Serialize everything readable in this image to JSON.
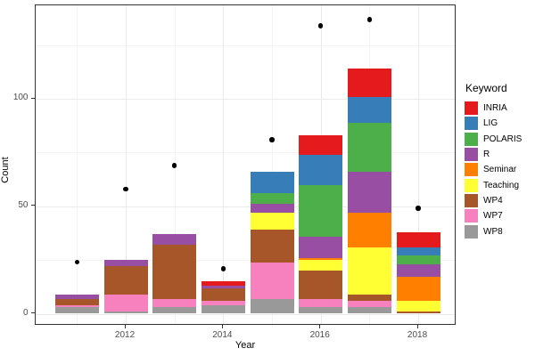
{
  "chart_data": {
    "type": "bar",
    "variant": "stacked-bars-with-points",
    "title": "",
    "xlabel": "Year",
    "ylabel": "Count",
    "legend_title": "Keyword",
    "legend_position": "right",
    "grid": "on",
    "categories": [
      2011,
      2012,
      2013,
      2014,
      2015,
      2016,
      2017,
      2018
    ],
    "x_tick_labels": [
      "2012",
      "2014",
      "2016",
      "2018"
    ],
    "y_tick_labels": [
      "0",
      "50",
      "100"
    ],
    "ylim": [
      0,
      143
    ],
    "series": [
      {
        "name": "INRIA",
        "color": "#E41A1C",
        "values": [
          0,
          0,
          0,
          2,
          0,
          9,
          13,
          7
        ]
      },
      {
        "name": "LIG",
        "color": "#377EB8",
        "values": [
          0,
          0,
          0,
          0,
          10,
          14,
          12,
          4
        ]
      },
      {
        "name": "POLARIS",
        "color": "#4DAF4A",
        "values": [
          0,
          0,
          0,
          0,
          5,
          24,
          23,
          4
        ]
      },
      {
        "name": "R",
        "color": "#984EA3",
        "values": [
          2,
          3,
          5,
          1,
          4,
          10,
          19,
          6
        ]
      },
      {
        "name": "Seminar",
        "color": "#FF7F00",
        "values": [
          0,
          0,
          0,
          0,
          0,
          1,
          16,
          11
        ]
      },
      {
        "name": "Teaching",
        "color": "#FFFF33",
        "values": [
          0,
          0,
          0,
          0,
          8,
          5,
          22,
          5
        ]
      },
      {
        "name": "WP4",
        "color": "#A65628",
        "values": [
          3,
          13,
          25,
          6,
          15,
          13,
          3,
          1
        ]
      },
      {
        "name": "WP7",
        "color": "#F781BF",
        "values": [
          1,
          8,
          4,
          2,
          17,
          4,
          3,
          0
        ]
      },
      {
        "name": "WP8",
        "color": "#999999",
        "values": [
          3,
          1,
          3,
          4,
          7,
          3,
          3,
          0
        ]
      }
    ],
    "stack_totals": [
      9,
      25,
      37,
      15,
      66,
      83,
      114,
      38
    ],
    "points_series": {
      "name": "total-points",
      "color": "#000000",
      "values": [
        24,
        58,
        69,
        21,
        81,
        134,
        137,
        49
      ]
    }
  }
}
